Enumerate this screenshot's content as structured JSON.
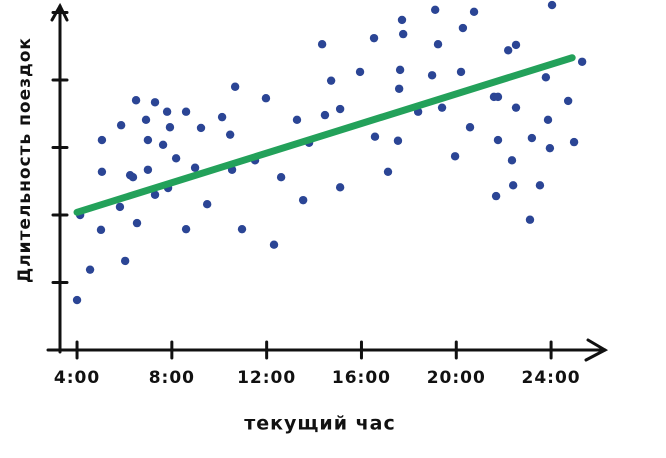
{
  "chart_data": {
    "type": "scatter",
    "y_label": "Длительность поездок",
    "x_label": "текущий час",
    "x": [
      4.0,
      4.13,
      4.55,
      5.01,
      5.05,
      5.05,
      5.81,
      5.86,
      6.03,
      6.24,
      6.36,
      6.49,
      6.53,
      6.91,
      6.99,
      6.99,
      7.29,
      7.29,
      7.63,
      7.8,
      7.92,
      7.84,
      8.18,
      8.6,
      8.6,
      8.98,
      9.23,
      9.49,
      10.12,
      10.46,
      10.54,
      10.67,
      10.96,
      11.51,
      11.97,
      12.31,
      12.61,
      13.28,
      13.54,
      13.79,
      14.34,
      14.46,
      14.72,
      15.1,
      15.1,
      15.94,
      16.53,
      16.57,
      17.12,
      17.54,
      17.59,
      17.63,
      17.71,
      17.76,
      18.39,
      18.98,
      19.11,
      19.23,
      19.4,
      19.95,
      20.2,
      20.28,
      20.58,
      20.75,
      21.59,
      21.68,
      21.76,
      21.76,
      22.19,
      22.35,
      22.4,
      22.52,
      22.52,
      23.11,
      23.19,
      23.53,
      23.78,
      23.87,
      23.95,
      24.04,
      24.72,
      24.97,
      25.31
    ],
    "values": [
      0.74,
      2.0,
      1.19,
      1.78,
      2.64,
      3.11,
      2.12,
      3.33,
      1.32,
      2.59,
      2.56,
      3.7,
      1.88,
      3.41,
      3.11,
      2.67,
      3.67,
      2.3,
      3.04,
      3.53,
      3.3,
      2.4,
      2.84,
      3.53,
      1.79,
      2.7,
      3.29,
      2.16,
      3.45,
      3.19,
      2.67,
      3.9,
      1.79,
      2.81,
      3.73,
      1.56,
      2.56,
      3.41,
      2.22,
      3.07,
      4.53,
      3.48,
      3.99,
      3.57,
      2.41,
      4.12,
      4.62,
      3.16,
      2.64,
      3.1,
      3.87,
      4.15,
      4.89,
      4.68,
      3.53,
      4.07,
      5.04,
      4.53,
      3.59,
      2.87,
      4.12,
      4.77,
      3.3,
      5.01,
      3.75,
      2.28,
      3.75,
      3.11,
      4.44,
      2.81,
      2.44,
      4.52,
      3.59,
      1.93,
      3.14,
      2.44,
      4.04,
      3.41,
      2.99,
      5.11,
      3.69,
      3.08,
      4.27
    ],
    "color": "#2b4595",
    "trend_line": {
      "x": [
        4.0,
        24.89
      ],
      "y": [
        2.04,
        4.33
      ],
      "color": "#23a15a"
    },
    "xlim": [
      2.8,
      26.3
    ],
    "ylim": [
      0,
      5.2
    ],
    "xticks": [
      {
        "value": 4,
        "label": "4:00"
      },
      {
        "value": 8,
        "label": "8:00"
      },
      {
        "value": 12,
        "label": "12:00"
      },
      {
        "value": 16,
        "label": "16:00"
      },
      {
        "value": 20,
        "label": "20:00"
      },
      {
        "value": 24,
        "label": "24:00"
      }
    ],
    "yticks": [
      1,
      2,
      3,
      4,
      5
    ]
  }
}
